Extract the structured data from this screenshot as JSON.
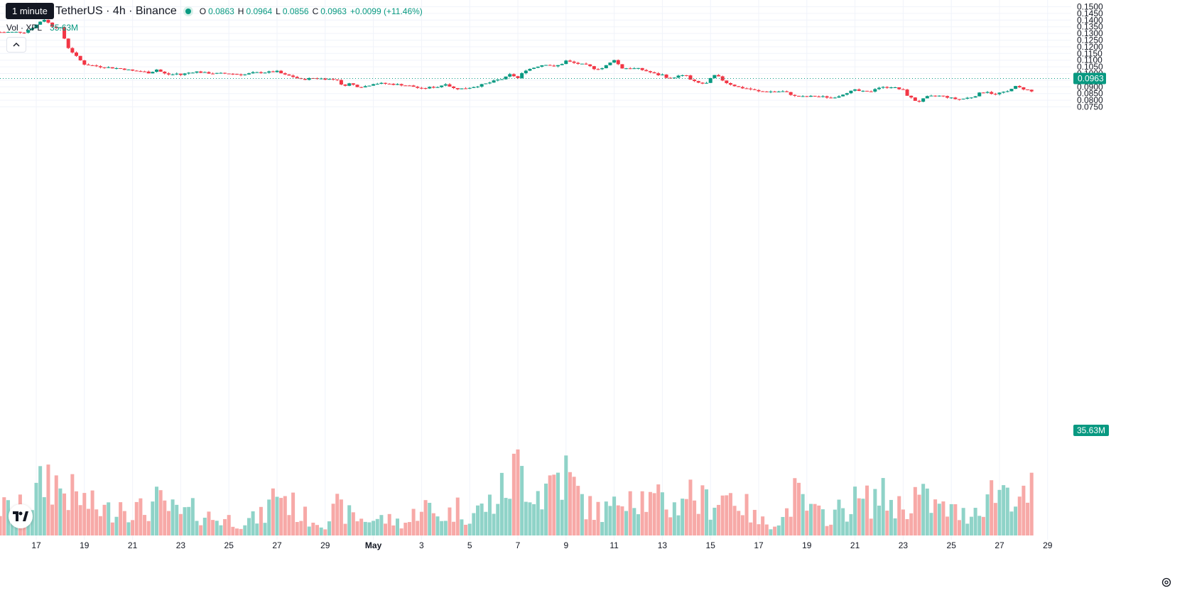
{
  "tooltip": {
    "text": "1 minute"
  },
  "legend": {
    "symbol_text": "TetherUS · 4h · Binance",
    "o_label": "O",
    "o_value": "0.0863",
    "h_label": "H",
    "h_value": "0.0964",
    "l_label": "L",
    "l_value": "0.0856",
    "c_label": "C",
    "c_value": "0.0963",
    "change": "+0.0099 (+11.46%)"
  },
  "volume_legend": {
    "label": "Vol · XPL",
    "value": "35.63M"
  },
  "colors": {
    "up": "#089981",
    "down": "#F23645",
    "vol_up": "#8fd3c8",
    "vol_down": "#f7a9a7",
    "grid": "#f0f3fa",
    "text": "#131722"
  },
  "icons": {
    "collapse": "chevron-up-icon",
    "logo": "tradingview-logo-icon",
    "settings": "settings-gear-icon"
  },
  "chart_data": {
    "type": "candlestick",
    "interval": "4h",
    "last_price": 0.0963,
    "last_price_label": "0.0963",
    "last_volume_label": "35.63M",
    "y_range": [
      0.0703,
      0.1505
    ],
    "y_ticks": [
      "0.1500",
      "0.1450",
      "0.1400",
      "0.1350",
      "0.1300",
      "0.1250",
      "0.1200",
      "0.1150",
      "0.1100",
      "0.1050",
      "0.1000",
      "0.0950",
      "0.0900",
      "0.0850",
      "0.0800",
      "0.0750"
    ],
    "x_ticks": [
      {
        "label": "17",
        "day": 0,
        "bold": false
      },
      {
        "label": "19",
        "day": 2,
        "bold": false
      },
      {
        "label": "21",
        "day": 4,
        "bold": false
      },
      {
        "label": "23",
        "day": 6,
        "bold": false
      },
      {
        "label": "25",
        "day": 8,
        "bold": false
      },
      {
        "label": "27",
        "day": 10,
        "bold": false
      },
      {
        "label": "29",
        "day": 12,
        "bold": false
      },
      {
        "label": "May",
        "day": 14,
        "bold": true
      },
      {
        "label": "3",
        "day": 16,
        "bold": false
      },
      {
        "label": "5",
        "day": 18,
        "bold": false
      },
      {
        "label": "7",
        "day": 20,
        "bold": false
      },
      {
        "label": "9",
        "day": 22,
        "bold": false
      },
      {
        "label": "11",
        "day": 24,
        "bold": false
      },
      {
        "label": "13",
        "day": 26,
        "bold": false
      },
      {
        "label": "15",
        "day": 28,
        "bold": false
      },
      {
        "label": "17",
        "day": 30,
        "bold": false
      },
      {
        "label": "19",
        "day": 32,
        "bold": false
      },
      {
        "label": "21",
        "day": 34,
        "bold": false
      },
      {
        "label": "23",
        "day": 36,
        "bold": false
      },
      {
        "label": "25",
        "day": 38,
        "bold": false
      },
      {
        "label": "27",
        "day": 40,
        "bold": false
      },
      {
        "label": "29",
        "day": 42,
        "bold": false
      }
    ],
    "close_anchors": [
      [
        -0.5,
        0.131
      ],
      [
        -0.1,
        0.135
      ],
      [
        0.3,
        0.141
      ],
      [
        0.7,
        0.135
      ],
      [
        1.0,
        0.134
      ],
      [
        1.3,
        0.12
      ],
      [
        1.7,
        0.112
      ],
      [
        2.0,
        0.107
      ],
      [
        2.3,
        0.106
      ],
      [
        2.7,
        0.105
      ],
      [
        3.0,
        0.1045
      ],
      [
        3.3,
        0.104
      ],
      [
        3.6,
        0.1035
      ],
      [
        4.0,
        0.102
      ],
      [
        4.4,
        0.1015
      ],
      [
        4.7,
        0.1005
      ],
      [
        5.0,
        0.103
      ],
      [
        5.3,
        0.1
      ],
      [
        5.6,
        0.099
      ],
      [
        5.8,
        0.1
      ],
      [
        6.0,
        0.099
      ],
      [
        6.3,
        0.1005
      ],
      [
        6.6,
        0.1015
      ],
      [
        7.0,
        0.1005
      ],
      [
        7.5,
        0.1
      ],
      [
        8.0,
        0.1
      ],
      [
        8.6,
        0.099
      ],
      [
        9.0,
        0.1005
      ],
      [
        9.6,
        0.101
      ],
      [
        10.0,
        0.1015
      ],
      [
        10.3,
        0.099
      ],
      [
        10.6,
        0.098
      ],
      [
        11.0,
        0.0955
      ],
      [
        11.5,
        0.0965
      ],
      [
        12.0,
        0.096
      ],
      [
        12.5,
        0.0955
      ],
      [
        12.7,
        0.0905
      ],
      [
        13.0,
        0.0925
      ],
      [
        13.4,
        0.09
      ],
      [
        13.7,
        0.0905
      ],
      [
        14.0,
        0.0925
      ],
      [
        14.4,
        0.0925
      ],
      [
        14.8,
        0.092
      ],
      [
        15.2,
        0.0915
      ],
      [
        15.6,
        0.0905
      ],
      [
        16.0,
        0.0885
      ],
      [
        16.3,
        0.0895
      ],
      [
        16.7,
        0.09
      ],
      [
        17.0,
        0.0925
      ],
      [
        17.3,
        0.089
      ],
      [
        17.6,
        0.0885
      ],
      [
        18.0,
        0.0895
      ],
      [
        18.4,
        0.091
      ],
      [
        18.8,
        0.093
      ],
      [
        19.2,
        0.0955
      ],
      [
        19.4,
        0.096
      ],
      [
        19.7,
        0.0995
      ],
      [
        20.0,
        0.0965
      ],
      [
        20.3,
        0.1025
      ],
      [
        20.6,
        0.104
      ],
      [
        20.9,
        0.106
      ],
      [
        21.2,
        0.107
      ],
      [
        21.5,
        0.105
      ],
      [
        21.8,
        0.107
      ],
      [
        22.0,
        0.1095
      ],
      [
        22.3,
        0.108
      ],
      [
        22.6,
        0.107
      ],
      [
        22.9,
        0.106
      ],
      [
        23.2,
        0.1035
      ],
      [
        23.5,
        0.104
      ],
      [
        23.8,
        0.1075
      ],
      [
        24.0,
        0.1105
      ],
      [
        24.3,
        0.104
      ],
      [
        24.6,
        0.104
      ],
      [
        25.0,
        0.1035
      ],
      [
        25.4,
        0.1015
      ],
      [
        25.8,
        0.099
      ],
      [
        26.0,
        0.099
      ],
      [
        26.3,
        0.096
      ],
      [
        26.6,
        0.098
      ],
      [
        27.0,
        0.0985
      ],
      [
        27.2,
        0.0945
      ],
      [
        27.5,
        0.093
      ],
      [
        27.8,
        0.092
      ],
      [
        28.0,
        0.096
      ],
      [
        28.2,
        0.099
      ],
      [
        28.4,
        0.0965
      ],
      [
        28.6,
        0.0935
      ],
      [
        28.9,
        0.0915
      ],
      [
        29.2,
        0.0895
      ],
      [
        29.6,
        0.0885
      ],
      [
        30.0,
        0.0865
      ],
      [
        30.4,
        0.0865
      ],
      [
        30.8,
        0.0865
      ],
      [
        31.0,
        0.0865
      ],
      [
        31.2,
        0.0855
      ],
      [
        31.5,
        0.083
      ],
      [
        31.9,
        0.0825
      ],
      [
        32.3,
        0.083
      ],
      [
        32.7,
        0.0825
      ],
      [
        33.0,
        0.082
      ],
      [
        33.3,
        0.083
      ],
      [
        33.6,
        0.0855
      ],
      [
        34.0,
        0.0875
      ],
      [
        34.3,
        0.0865
      ],
      [
        34.6,
        0.086
      ],
      [
        34.9,
        0.0895
      ],
      [
        35.2,
        0.0895
      ],
      [
        35.5,
        0.09
      ],
      [
        35.8,
        0.0885
      ],
      [
        36.0,
        0.0875
      ],
      [
        36.2,
        0.083
      ],
      [
        36.4,
        0.081
      ],
      [
        36.6,
        0.0785
      ],
      [
        36.8,
        0.0805
      ],
      [
        37.0,
        0.0825
      ],
      [
        37.4,
        0.0835
      ],
      [
        37.8,
        0.0825
      ],
      [
        38.0,
        0.0815
      ],
      [
        38.3,
        0.0805
      ],
      [
        38.6,
        0.0815
      ],
      [
        38.9,
        0.0825
      ],
      [
        39.2,
        0.0855
      ],
      [
        39.5,
        0.0865
      ],
      [
        39.8,
        0.084
      ],
      [
        40.0,
        0.0855
      ],
      [
        40.3,
        0.086
      ],
      [
        40.6,
        0.0905
      ],
      [
        40.9,
        0.089
      ],
      [
        41.2,
        0.0875
      ],
      [
        41.4,
        0.086
      ],
      [
        41.6,
        0.088
      ],
      [
        41.8,
        0.0865
      ],
      [
        42.0,
        0.0835
      ],
      [
        42.2,
        0.083
      ],
      [
        42.4,
        0.0855
      ],
      [
        42.6,
        0.0863
      ],
      [
        42.8,
        0.0963
      ]
    ],
    "volume_anchors": [
      [
        -0.5,
        2.0
      ],
      [
        0.0,
        3.0
      ],
      [
        0.5,
        4.5
      ],
      [
        1.0,
        3.5
      ],
      [
        1.5,
        3.0
      ],
      [
        2.0,
        2.5
      ],
      [
        2.5,
        2.0
      ],
      [
        3.0,
        1.8
      ],
      [
        3.5,
        2.5
      ],
      [
        4.0,
        2.0
      ],
      [
        4.5,
        1.8
      ],
      [
        5.0,
        2.5
      ],
      [
        5.5,
        2.0
      ],
      [
        6.0,
        1.5
      ],
      [
        6.5,
        1.8
      ],
      [
        7.0,
        1.5
      ],
      [
        7.5,
        1.2
      ],
      [
        8.0,
        1.2
      ],
      [
        8.5,
        1.0
      ],
      [
        9.0,
        1.2
      ],
      [
        9.5,
        1.5
      ],
      [
        10.0,
        3.5
      ],
      [
        10.5,
        2.5
      ],
      [
        11.0,
        1.5
      ],
      [
        11.5,
        1.2
      ],
      [
        12.0,
        1.0
      ],
      [
        12.5,
        2.0
      ],
      [
        13.0,
        1.5
      ],
      [
        13.5,
        1.2
      ],
      [
        14.0,
        1.2
      ],
      [
        14.5,
        1.2
      ],
      [
        15.0,
        1.0
      ],
      [
        15.5,
        1.0
      ],
      [
        16.0,
        2.5
      ],
      [
        16.5,
        1.5
      ],
      [
        17.0,
        1.5
      ],
      [
        17.5,
        2.0
      ],
      [
        18.0,
        1.5
      ],
      [
        18.5,
        2.0
      ],
      [
        19.0,
        2.5
      ],
      [
        19.5,
        3.5
      ],
      [
        20.0,
        5.0
      ],
      [
        20.5,
        4.0
      ],
      [
        21.0,
        3.0
      ],
      [
        21.5,
        4.5
      ],
      [
        22.0,
        4.5
      ],
      [
        22.5,
        3.0
      ],
      [
        23.0,
        2.0
      ],
      [
        23.5,
        1.8
      ],
      [
        24.0,
        2.0
      ],
      [
        24.5,
        4.0
      ],
      [
        25.0,
        3.0
      ],
      [
        25.5,
        2.5
      ],
      [
        26.0,
        2.5
      ],
      [
        26.5,
        2.0
      ],
      [
        27.0,
        3.5
      ],
      [
        27.5,
        2.5
      ],
      [
        28.0,
        2.5
      ],
      [
        28.5,
        3.0
      ],
      [
        29.0,
        3.0
      ],
      [
        29.5,
        2.0
      ],
      [
        30.0,
        1.0
      ],
      [
        30.5,
        1.0
      ],
      [
        31.0,
        1.2
      ],
      [
        31.5,
        3.0
      ],
      [
        32.0,
        2.0
      ],
      [
        32.5,
        1.5
      ],
      [
        33.0,
        1.5
      ],
      [
        33.5,
        2.0
      ],
      [
        34.0,
        2.5
      ],
      [
        34.5,
        2.5
      ],
      [
        35.0,
        3.0
      ],
      [
        35.5,
        2.5
      ],
      [
        36.0,
        2.0
      ],
      [
        36.5,
        3.0
      ],
      [
        37.0,
        2.5
      ],
      [
        37.5,
        2.0
      ],
      [
        38.0,
        1.8
      ],
      [
        38.5,
        1.5
      ],
      [
        39.0,
        2.0
      ],
      [
        39.5,
        3.0
      ],
      [
        40.0,
        3.5
      ],
      [
        40.5,
        3.5
      ],
      [
        41.0,
        2.5
      ],
      [
        41.5,
        3.5
      ],
      [
        42.0,
        3.0
      ],
      [
        42.5,
        4.0
      ],
      [
        42.8,
        5.0
      ]
    ],
    "volume_max_m": 7.0
  }
}
